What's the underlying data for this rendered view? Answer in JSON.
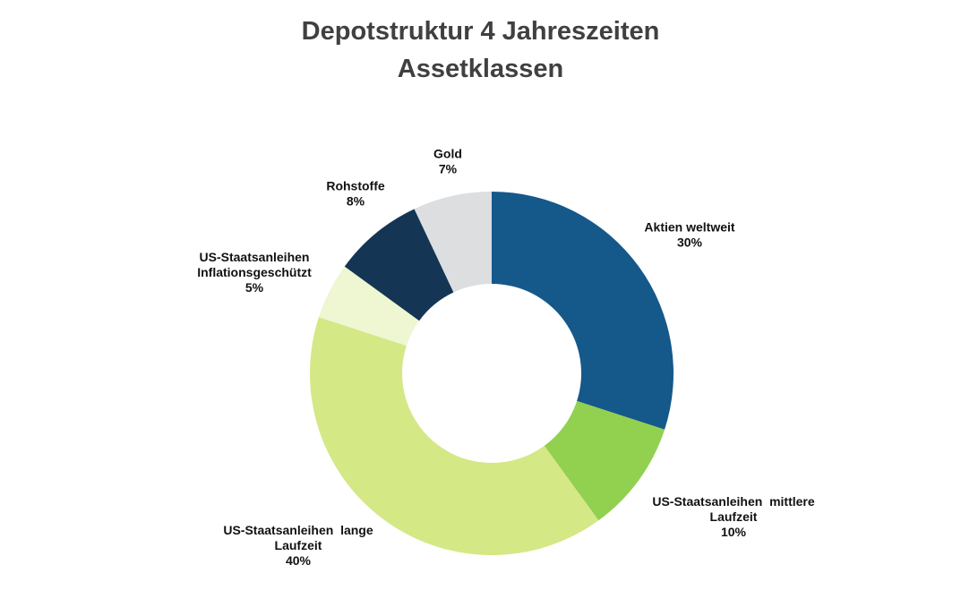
{
  "chart_data": {
    "type": "pie",
    "variant": "doughnut",
    "title": [
      "Depotstruktur 4 Jahreszeiten",
      "Assetklassen"
    ],
    "slices": [
      {
        "name": "Aktien weltweit",
        "label_lines": [
          "Aktien weltweit"
        ],
        "value": 30,
        "value_label": "30%",
        "color": "#15588A"
      },
      {
        "name": "US-Staatsanleihen mittlere Laufzeit",
        "label_lines": [
          "US-Staatsanleihen  mittlere",
          "Laufzeit"
        ],
        "value": 10,
        "value_label": "10%",
        "color": "#92D050"
      },
      {
        "name": "US-Staatsanleihen lange Laufzeit",
        "label_lines": [
          "US-Staatsanleihen  lange",
          "Laufzeit"
        ],
        "value": 40,
        "value_label": "40%",
        "color": "#D4E886"
      },
      {
        "name": "US-Staatsanleihen Inflationsgeschützt",
        "label_lines": [
          "US-Staatsanleihen",
          "Inflationsgeschützt"
        ],
        "value": 5,
        "value_label": "5%",
        "color": "#EEF6D2"
      },
      {
        "name": "Rohstoffe",
        "label_lines": [
          "Rohstoffe"
        ],
        "value": 8,
        "value_label": "8%",
        "color": "#143654"
      },
      {
        "name": "Gold",
        "label_lines": [
          "Gold"
        ],
        "value": 7,
        "value_label": "7%",
        "color": "#DCDEE0"
      }
    ],
    "start_angle": "12 o'clock",
    "direction": "clockwise",
    "legend": "none",
    "data_labels": "outside"
  }
}
